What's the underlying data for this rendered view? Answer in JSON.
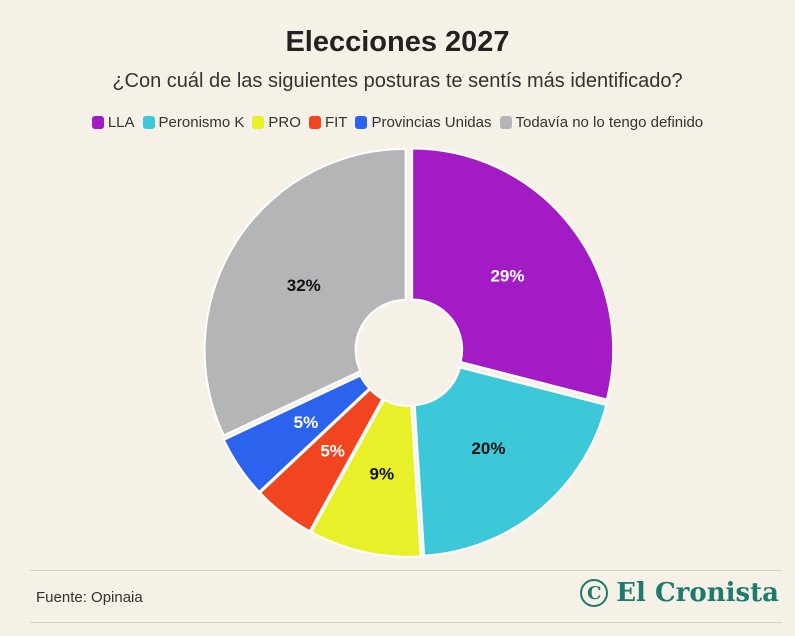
{
  "title": "Elecciones 2027",
  "subtitle": "¿Con cuál de las siguientes posturas te sentís más identificado?",
  "source": "Fuente: Opinaia",
  "brand": {
    "name": "El Cronista",
    "logo_icon": "cronista-c-icon"
  },
  "chart_data": {
    "type": "pie",
    "donut": true,
    "legend_position": "top",
    "categories": [
      "LLA",
      "Peronismo K",
      "PRO",
      "FIT",
      "Provincias Unidas",
      "Todavía no lo tengo definido"
    ],
    "values": [
      29,
      20,
      9,
      5,
      5,
      32
    ],
    "labels": [
      "29%",
      "20%",
      "9%",
      "5%",
      "5%",
      "32%"
    ],
    "colors": [
      "#a31bc4",
      "#3cc8d8",
      "#e8f02a",
      "#f0451f",
      "#2c63ee",
      "#b5b5b7"
    ],
    "label_colors": [
      "#ffffff",
      "#111111",
      "#111111",
      "#ffffff",
      "#ffffff",
      "#111111"
    ]
  }
}
